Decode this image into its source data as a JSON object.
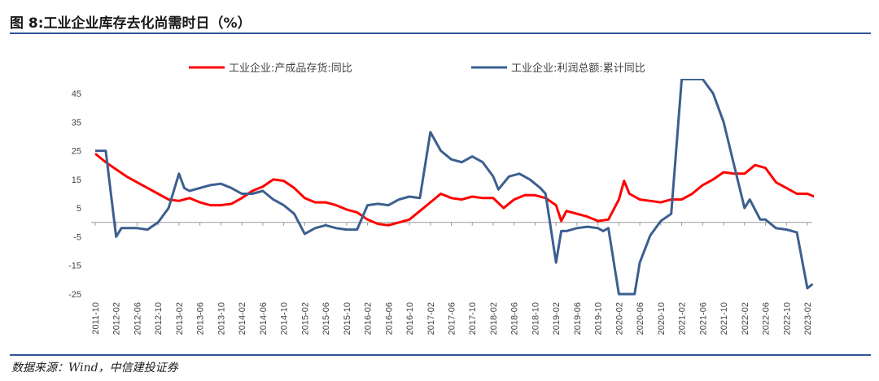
{
  "header": {
    "title": "图 8:工业企业库存去化尚需时日（%）",
    "source": "数据来源：Wind，中信建投证券"
  },
  "chart_data": {
    "type": "line",
    "ylim": [
      -25,
      45
    ],
    "yticks": [
      45,
      35,
      25,
      15,
      5,
      -5,
      -15,
      -25
    ],
    "xticks": [
      "2011-10",
      "2012-02",
      "2012-06",
      "2012-10",
      "2013-02",
      "2013-06",
      "2013-10",
      "2014-02",
      "2014-06",
      "2014-10",
      "2015-02",
      "2015-06",
      "2015-10",
      "2016-02",
      "2016-06",
      "2016-10",
      "2017-02",
      "2017-06",
      "2017-10",
      "2018-02",
      "2018-06",
      "2018-10",
      "2019-02",
      "2019-06",
      "2019-10",
      "2020-02",
      "2020-06",
      "2020-10",
      "2021-02",
      "2021-06",
      "2021-10",
      "2022-02",
      "2022-06",
      "2022-10",
      "2023-02"
    ],
    "legend_position": "top",
    "series": [
      {
        "name": "工业企业:产成品存货:同比",
        "color": "#ff0000",
        "points": [
          [
            "2011-10",
            24
          ],
          [
            "2011-12",
            21
          ],
          [
            "2012-02",
            18.5
          ],
          [
            "2012-04",
            16
          ],
          [
            "2012-06",
            14
          ],
          [
            "2012-08",
            12
          ],
          [
            "2012-10",
            10
          ],
          [
            "2012-12",
            8
          ],
          [
            "2013-02",
            7.5
          ],
          [
            "2013-04",
            8.5
          ],
          [
            "2013-06",
            7
          ],
          [
            "2013-08",
            6
          ],
          [
            "2013-10",
            6
          ],
          [
            "2013-12",
            6.5
          ],
          [
            "2014-02",
            8.5
          ],
          [
            "2014-04",
            11
          ],
          [
            "2014-06",
            12.5
          ],
          [
            "2014-08",
            15
          ],
          [
            "2014-10",
            14.5
          ],
          [
            "2014-12",
            12
          ],
          [
            "2015-02",
            8.5
          ],
          [
            "2015-04",
            7
          ],
          [
            "2015-06",
            7
          ],
          [
            "2015-08",
            6
          ],
          [
            "2015-10",
            4.5
          ],
          [
            "2015-12",
            3.5
          ],
          [
            "2016-02",
            1
          ],
          [
            "2016-04",
            -0.5
          ],
          [
            "2016-06",
            -1
          ],
          [
            "2016-08",
            0
          ],
          [
            "2016-10",
            1
          ],
          [
            "2016-12",
            4
          ],
          [
            "2017-02",
            7
          ],
          [
            "2017-04",
            10
          ],
          [
            "2017-06",
            8.5
          ],
          [
            "2017-08",
            8
          ],
          [
            "2017-10",
            9
          ],
          [
            "2017-12",
            8.5
          ],
          [
            "2018-02",
            8.5
          ],
          [
            "2018-04",
            5
          ],
          [
            "2018-06",
            8
          ],
          [
            "2018-08",
            9.5
          ],
          [
            "2018-10",
            9.5
          ],
          [
            "2018-12",
            8.5
          ],
          [
            "2019-02",
            6
          ],
          [
            "2019-03",
            0.5
          ],
          [
            "2019-04",
            4
          ],
          [
            "2019-06",
            3
          ],
          [
            "2019-08",
            2
          ],
          [
            "2019-10",
            0.5
          ],
          [
            "2019-12",
            1
          ],
          [
            "2020-02",
            8
          ],
          [
            "2020-03",
            14.5
          ],
          [
            "2020-04",
            10
          ],
          [
            "2020-06",
            8
          ],
          [
            "2020-08",
            7.5
          ],
          [
            "2020-10",
            7
          ],
          [
            "2020-12",
            8
          ],
          [
            "2021-02",
            8
          ],
          [
            "2021-04",
            10
          ],
          [
            "2021-06",
            13
          ],
          [
            "2021-08",
            15
          ],
          [
            "2021-10",
            17.5
          ],
          [
            "2021-12",
            17
          ],
          [
            "2022-02",
            17
          ],
          [
            "2022-04",
            20
          ],
          [
            "2022-06",
            19
          ],
          [
            "2022-08",
            14
          ],
          [
            "2022-10",
            12
          ],
          [
            "2022-12",
            10
          ],
          [
            "2023-02",
            10
          ],
          [
            "2023-04",
            8.5
          ]
        ]
      },
      {
        "name": "工业企业:利润总额:累计同比",
        "color": "#3c5f8f",
        "points": [
          [
            "2011-10",
            25
          ],
          [
            "2011-12",
            25
          ],
          [
            "2012-02",
            -5
          ],
          [
            "2012-03",
            -2
          ],
          [
            "2012-06",
            -2
          ],
          [
            "2012-08",
            -2.5
          ],
          [
            "2012-10",
            0
          ],
          [
            "2012-12",
            5
          ],
          [
            "2013-02",
            17
          ],
          [
            "2013-03",
            12
          ],
          [
            "2013-04",
            11
          ],
          [
            "2013-06",
            12
          ],
          [
            "2013-08",
            13
          ],
          [
            "2013-10",
            13.5
          ],
          [
            "2013-12",
            12
          ],
          [
            "2014-02",
            10
          ],
          [
            "2014-04",
            10
          ],
          [
            "2014-06",
            11
          ],
          [
            "2014-08",
            8
          ],
          [
            "2014-10",
            6
          ],
          [
            "2014-12",
            3
          ],
          [
            "2015-02",
            -4
          ],
          [
            "2015-04",
            -2
          ],
          [
            "2015-06",
            -1
          ],
          [
            "2015-08",
            -2
          ],
          [
            "2015-10",
            -2.5
          ],
          [
            "2015-12",
            -2.5
          ],
          [
            "2016-02",
            6
          ],
          [
            "2016-04",
            6.5
          ],
          [
            "2016-06",
            6
          ],
          [
            "2016-08",
            8
          ],
          [
            "2016-10",
            9
          ],
          [
            "2016-12",
            8.5
          ],
          [
            "2017-02",
            31.5
          ],
          [
            "2017-04",
            25
          ],
          [
            "2017-06",
            22
          ],
          [
            "2017-08",
            21
          ],
          [
            "2017-10",
            23
          ],
          [
            "2017-12",
            21
          ],
          [
            "2018-02",
            16
          ],
          [
            "2018-03",
            11.5
          ],
          [
            "2018-05",
            16
          ],
          [
            "2018-07",
            17
          ],
          [
            "2018-09",
            15
          ],
          [
            "2018-11",
            12
          ],
          [
            "2018-12",
            10
          ],
          [
            "2019-02",
            -14
          ],
          [
            "2019-03",
            -3
          ],
          [
            "2019-04",
            -3
          ],
          [
            "2019-06",
            -2
          ],
          [
            "2019-08",
            -1.5
          ],
          [
            "2019-10",
            -2
          ],
          [
            "2019-11",
            -3
          ],
          [
            "2019-12",
            -2
          ],
          [
            "2020-02",
            -25
          ],
          [
            "2020-05",
            -25
          ],
          [
            "2020-06",
            -14
          ],
          [
            "2020-08",
            -4.5
          ],
          [
            "2020-10",
            0.5
          ],
          [
            "2020-12",
            3
          ],
          [
            "2021-02",
            50
          ],
          [
            "2021-06",
            50
          ],
          [
            "2021-08",
            45
          ],
          [
            "2021-10",
            35
          ],
          [
            "2021-12",
            20
          ],
          [
            "2022-02",
            5
          ],
          [
            "2022-03",
            8
          ],
          [
            "2022-05",
            1
          ],
          [
            "2022-06",
            1
          ],
          [
            "2022-08",
            -2
          ],
          [
            "2022-10",
            -2.5
          ],
          [
            "2022-12",
            -3.5
          ],
          [
            "2023-02",
            -23
          ],
          [
            "2023-03",
            -21.5
          ]
        ]
      }
    ]
  }
}
